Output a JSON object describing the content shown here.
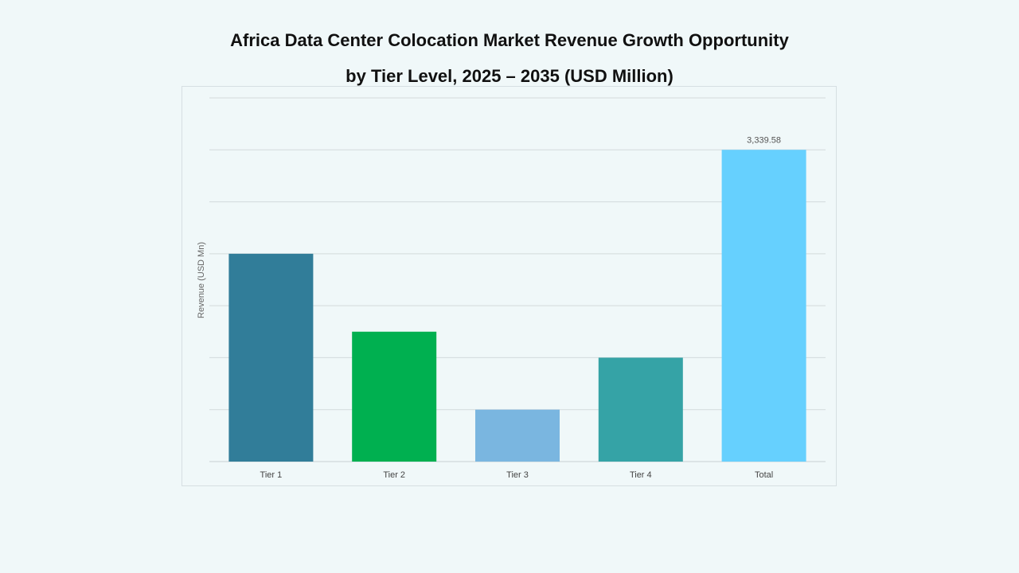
{
  "chart_data": {
    "type": "bar",
    "title": "Africa Data Center Colocation Market Revenue Growth Opportunity",
    "subtitle": "by Tier Level, 2025 – 2035 (USD Million)",
    "xlabel": "",
    "ylabel": "Revenue (USD Mn)",
    "categories": [
      "Tier 1",
      "Tier 2",
      "Tier 3",
      "Tier 4",
      "Total"
    ],
    "values": [
      2226.4,
      1391.5,
      556.6,
      1113.2,
      3339.58
    ],
    "data_labels": [
      "",
      "",
      "",
      "",
      "3,339.58"
    ],
    "colors": [
      "#317d99",
      "#00b050",
      "#7ab6e0",
      "#35a3a6",
      "#66d0fe"
    ],
    "ylim": [
      0,
      3896
    ],
    "grid": true,
    "y_tick_labels_shown": false
  }
}
